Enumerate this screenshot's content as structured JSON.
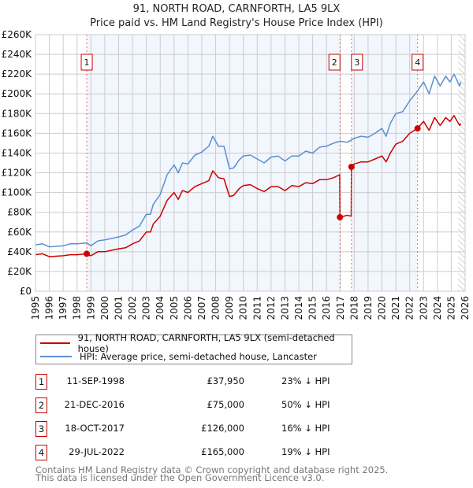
{
  "chart_data": {
    "type": "line",
    "title": "91, NORTH ROAD, CARNFORTH, LA5 9LX",
    "subtitle": "Price paid vs. HM Land Registry's House Price Index (HPI)",
    "xlim": [
      1995,
      2026
    ],
    "ylim": [
      0,
      260000
    ],
    "grid": true,
    "y_ticks": [
      "£0",
      "£20K",
      "£40K",
      "£60K",
      "£80K",
      "£100K",
      "£120K",
      "£140K",
      "£160K",
      "£180K",
      "£200K",
      "£220K",
      "£240K",
      "£260K"
    ],
    "x_ticks": [
      "1995",
      "1996",
      "1997",
      "1998",
      "1999",
      "2000",
      "2001",
      "2002",
      "2003",
      "2004",
      "2005",
      "2006",
      "2007",
      "2008",
      "2009",
      "2010",
      "2011",
      "2012",
      "2013",
      "2014",
      "2015",
      "2016",
      "2017",
      "2018",
      "2019",
      "2020",
      "2021",
      "2022",
      "2023",
      "2024",
      "2025",
      "2026"
    ],
    "series": [
      {
        "name": "91, NORTH ROAD, CARNFORTH, LA5 9LX (semi-detached house)",
        "color": "#cc0000",
        "x": [
          1995,
          1995.5,
          1996,
          1997,
          1997.5,
          1998,
          1998.7,
          1999,
          1999.5,
          2000,
          2001,
          2001.5,
          2002,
          2002.5,
          2003,
          2003.3,
          2003.5,
          2004,
          2004.5,
          2005,
          2005.3,
          2005.6,
          2006,
          2006.5,
          2007,
          2007.5,
          2007.8,
          2008.2,
          2008.6,
          2009,
          2009.3,
          2009.7,
          2010,
          2010.5,
          2011,
          2011.5,
          2012,
          2012.5,
          2013,
          2013.5,
          2014,
          2014.5,
          2015,
          2015.5,
          2016,
          2016.5,
          2016.95,
          2016.97,
          2017.5,
          2017.78,
          2017.8,
          2018,
          2018.5,
          2019,
          2019.5,
          2020,
          2020.3,
          2020.6,
          2021,
          2021.5,
          2022,
          2022.57,
          2023,
          2023.4,
          2023.8,
          2024.2,
          2024.6,
          2024.9,
          2025.2,
          2025.6,
          2025.7
        ],
        "y": [
          37000,
          38000,
          35000,
          36000,
          37000,
          37000,
          37950,
          36000,
          40000,
          40000,
          43000,
          44000,
          48000,
          51000,
          60000,
          60000,
          68000,
          76000,
          92000,
          100000,
          93000,
          102000,
          100000,
          106000,
          109000,
          112000,
          122000,
          115000,
          114000,
          96000,
          97000,
          104000,
          107000,
          108000,
          104000,
          101000,
          106000,
          106000,
          102000,
          107000,
          106000,
          110000,
          109000,
          113000,
          113000,
          115000,
          118000,
          75000,
          77000,
          76000,
          126000,
          129000,
          131000,
          131000,
          134000,
          137000,
          131000,
          140000,
          149000,
          152000,
          160000,
          165000,
          172000,
          163000,
          176000,
          168000,
          176000,
          172000,
          178000,
          168000,
          170000
        ]
      },
      {
        "name": "HPI: Average price, semi-detached house, Lancaster",
        "color": "#5b8fd0",
        "x": [
          1995,
          1995.5,
          1996,
          1997,
          1997.5,
          1998,
          1998.7,
          1999,
          1999.5,
          2000,
          2001,
          2001.5,
          2002,
          2002.5,
          2003,
          2003.3,
          2003.5,
          2004,
          2004.5,
          2005,
          2005.3,
          2005.6,
          2006,
          2006.5,
          2007,
          2007.5,
          2007.8,
          2008.2,
          2008.6,
          2009,
          2009.3,
          2009.7,
          2010,
          2010.5,
          2011,
          2011.5,
          2012,
          2012.5,
          2013,
          2013.5,
          2014,
          2014.5,
          2015,
          2015.5,
          2016,
          2016.5,
          2016.97,
          2017.5,
          2018,
          2018.5,
          2019,
          2019.5,
          2020,
          2020.3,
          2020.6,
          2021,
          2021.5,
          2022,
          2022.57,
          2023,
          2023.4,
          2023.8,
          2024.2,
          2024.6,
          2024.9,
          2025.2,
          2025.6,
          2025.7
        ],
        "y": [
          47000,
          48000,
          45000,
          46000,
          48000,
          48000,
          49000,
          46000,
          51000,
          52000,
          55000,
          57000,
          62000,
          66000,
          78000,
          78000,
          88000,
          98000,
          118000,
          128000,
          120000,
          130000,
          129000,
          138000,
          141000,
          147000,
          157000,
          147000,
          147000,
          124000,
          125000,
          133000,
          137000,
          138000,
          134000,
          130000,
          136000,
          137000,
          132000,
          137000,
          137000,
          142000,
          140000,
          146000,
          147000,
          150000,
          152000,
          151000,
          155000,
          157000,
          156000,
          160000,
          165000,
          157000,
          170000,
          180000,
          182000,
          193000,
          203000,
          212000,
          200000,
          218000,
          208000,
          218000,
          212000,
          220000,
          208000,
          212000
        ]
      }
    ],
    "sales": [
      {
        "label": "1",
        "x": 1998.7,
        "y": 37950
      },
      {
        "label": "2",
        "x": 2016.97,
        "y": 75000
      },
      {
        "label": "3",
        "x": 2017.8,
        "y": 126000
      },
      {
        "label": "4",
        "x": 2022.57,
        "y": 165000
      }
    ],
    "shaded_ranges": [
      [
        1998.7,
        2016.97
      ],
      [
        2017.8,
        2022.57
      ]
    ],
    "forecast_hatch_from": 2025.5
  },
  "legend": {
    "property": "91, NORTH ROAD, CARNFORTH, LA5 9LX (semi-detached house)",
    "hpi": "HPI: Average price, semi-detached house, Lancaster"
  },
  "transactions": [
    {
      "num": "1",
      "date": "11-SEP-1998",
      "price": "£37,950",
      "hpi": "23% ↓ HPI"
    },
    {
      "num": "2",
      "date": "21-DEC-2016",
      "price": "£75,000",
      "hpi": "50% ↓ HPI"
    },
    {
      "num": "3",
      "date": "18-OCT-2017",
      "price": "£126,000",
      "hpi": "16% ↓ HPI"
    },
    {
      "num": "4",
      "date": "29-JUL-2022",
      "price": "£165,000",
      "hpi": "19% ↓ HPI"
    }
  ],
  "footer": {
    "line1": "Contains HM Land Registry data © Crown copyright and database right 2025.",
    "line2": "This data is licensed under the Open Government Licence v3.0."
  }
}
